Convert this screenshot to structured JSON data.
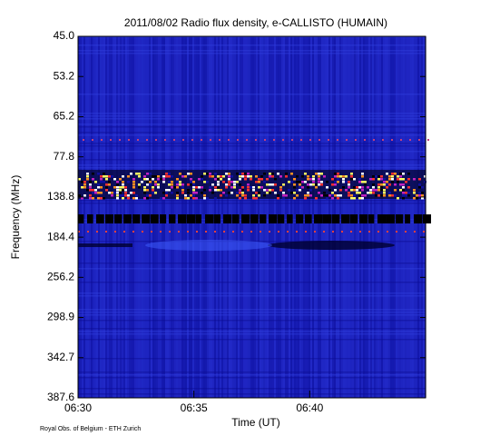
{
  "chart_data": {
    "type": "spectrogram",
    "title": "2011/08/02  Radio flux density, e-CALLISTO (HUMAIN)",
    "xlabel": "Time (UT)",
    "ylabel": "Frequency (MHz)",
    "x": [
      "06:30",
      "06:35",
      "06:40"
    ],
    "xlim": [
      "06:30",
      "06:45"
    ],
    "ylim": [
      45.0,
      387.6
    ],
    "yticks": [
      {
        "value": 45,
        "label": "45.0"
      },
      53.2,
      65.2,
      77.8,
      138.8,
      184.4,
      256.2,
      298.9,
      342.7,
      387.6
    ],
    "credit": "Royal Obs. of Belgium - ETH Zurich"
  }
}
